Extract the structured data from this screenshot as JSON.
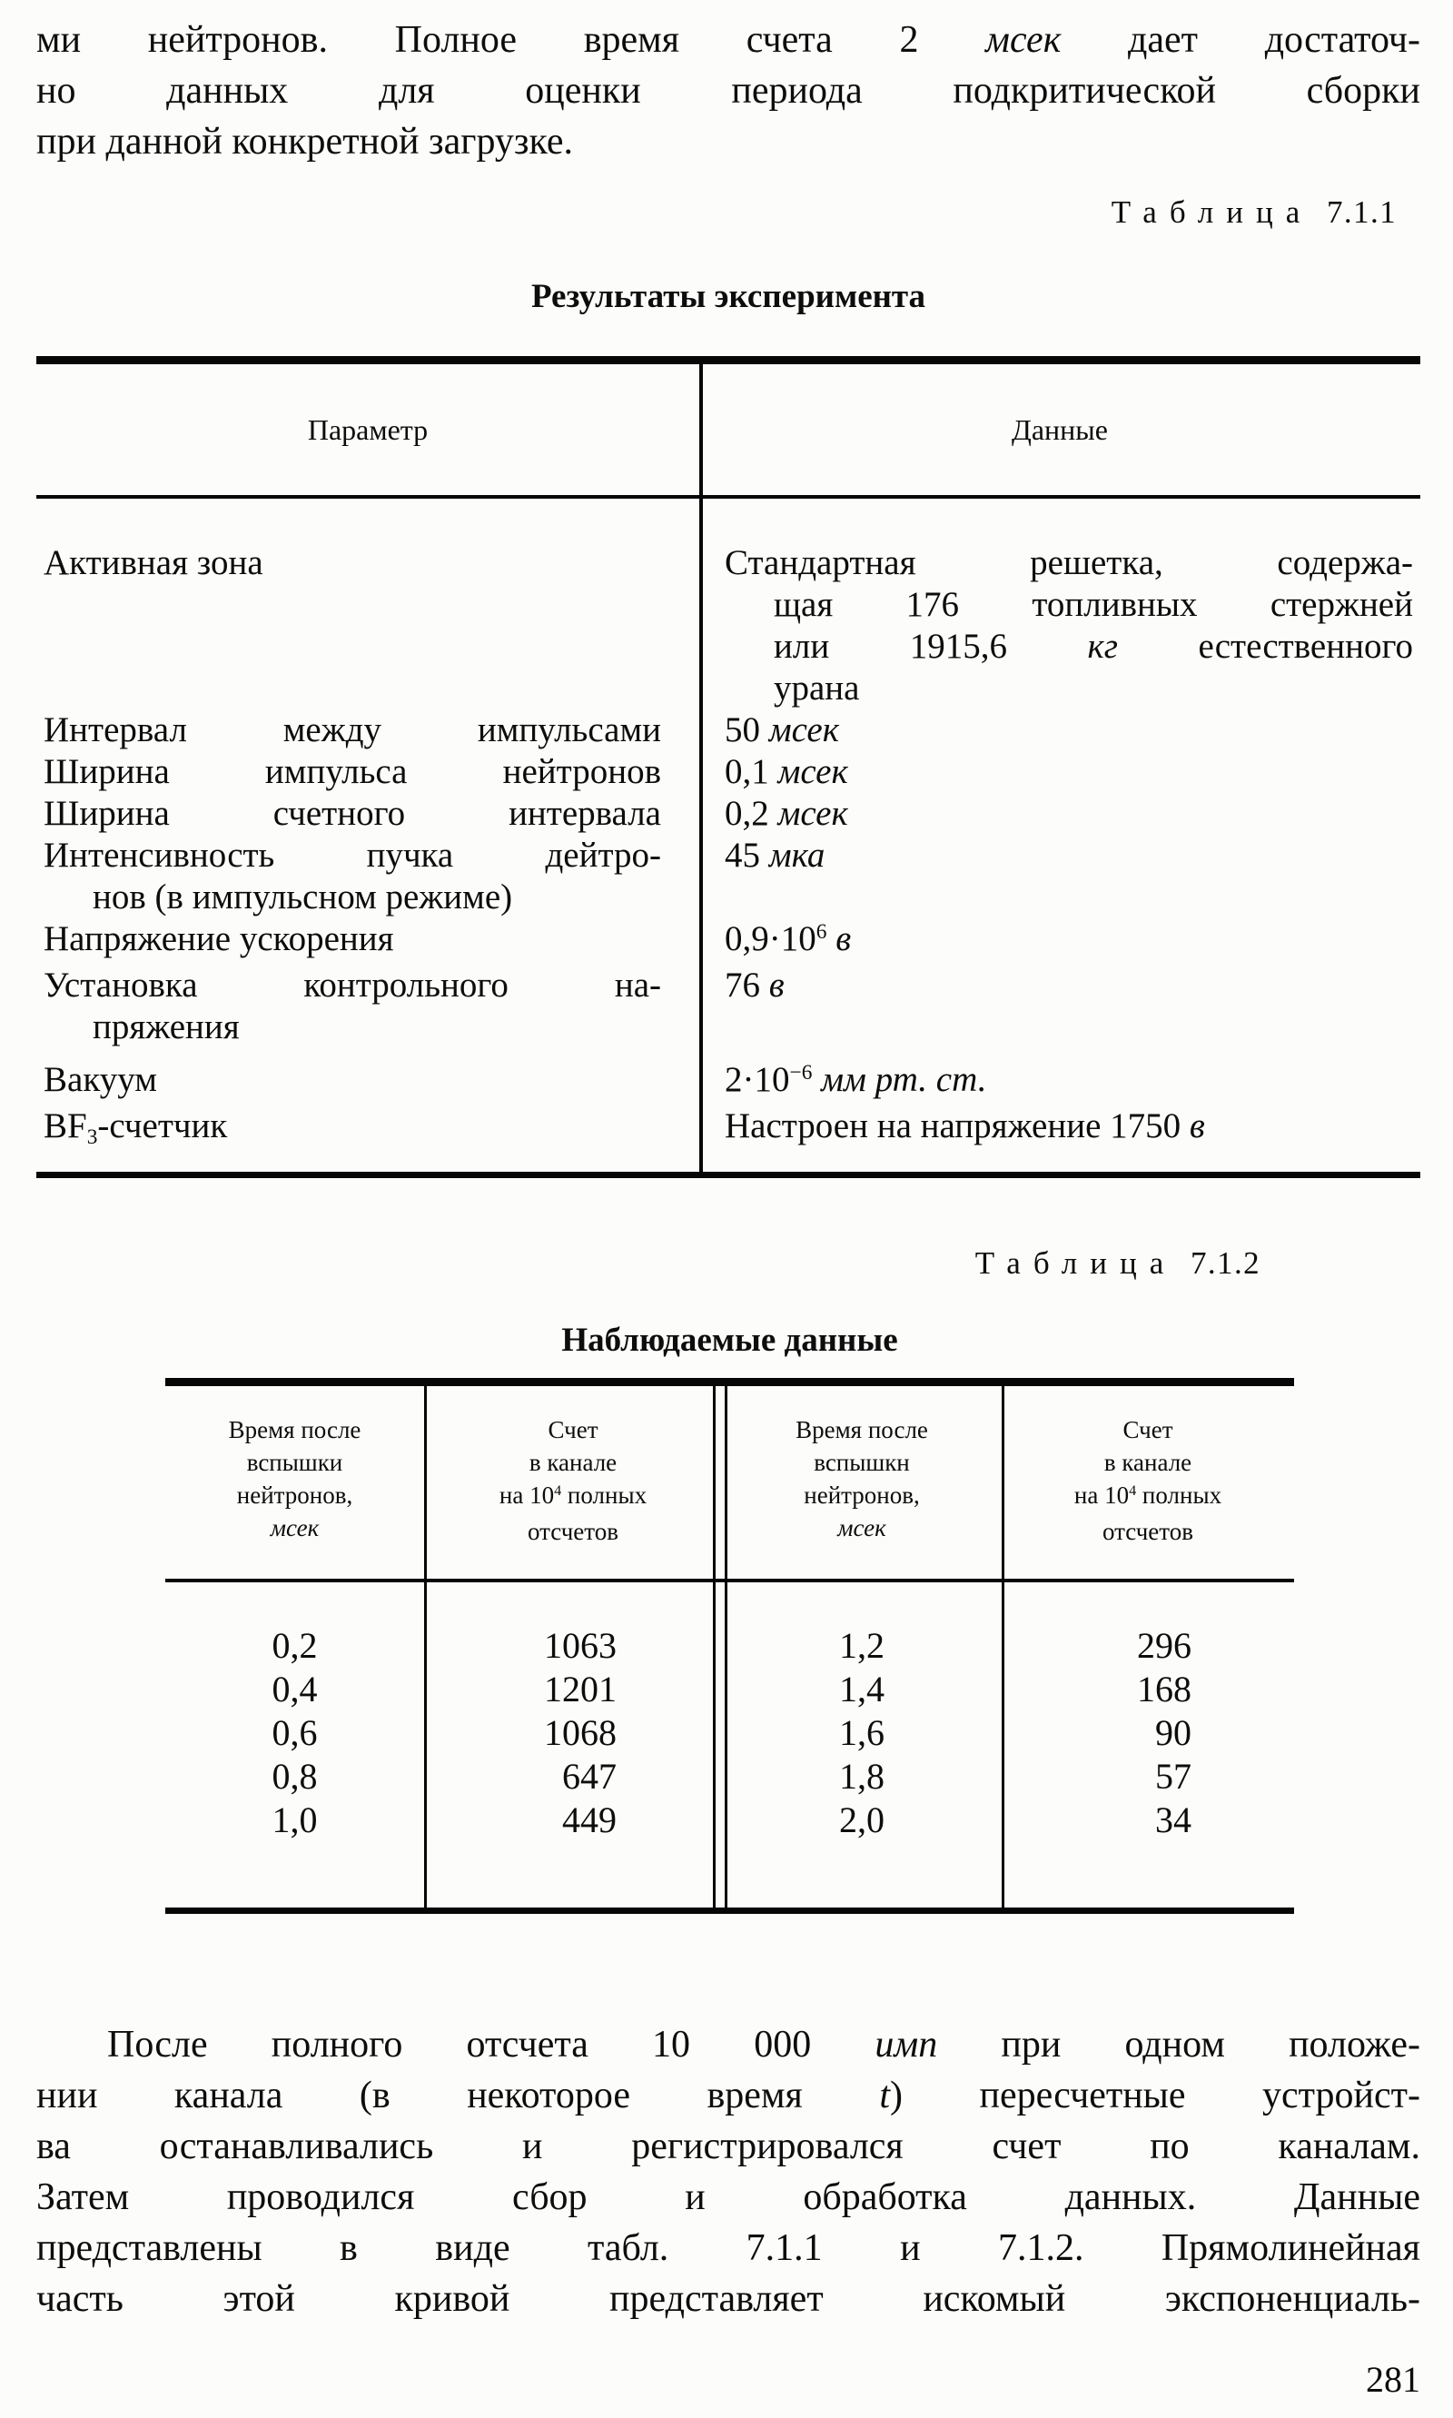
{
  "page_number": "281",
  "intro_paragraph": {
    "lines": [
      [
        {
          "t": "ми нейтронов. Полное время счета 2 "
        },
        {
          "t": "мсек",
          "i": true
        },
        {
          "t": " дает достаточ-"
        }
      ],
      [
        {
          "t": "но данных для оценки периода подкритической сборки"
        }
      ],
      [
        {
          "t": "при данной конкретной загрузке."
        }
      ]
    ]
  },
  "table1": {
    "caption_word": "Таблица",
    "caption_number": "7.1.1",
    "title": "Результаты эксперимента",
    "columns": [
      "Параметр",
      "Данные"
    ],
    "rows": [
      {
        "param": [
          [
            {
              "t": "Активная зона"
            }
          ]
        ],
        "value": [
          [
            {
              "t": "Стандартная решетка, содержа-"
            }
          ],
          [
            {
              "t": "щая 176 топливных стержней"
            }
          ],
          [
            {
              "t": "или 1915,6 "
            },
            {
              "t": "кг",
              "i": true
            },
            {
              "t": " естественного"
            }
          ],
          [
            {
              "t": "урана"
            }
          ]
        ]
      },
      {
        "param": [
          [
            {
              "t": "Интервал между импульсами"
            }
          ]
        ],
        "value": [
          [
            {
              "t": "50 "
            },
            {
              "t": "мсек",
              "i": true
            }
          ]
        ]
      },
      {
        "param": [
          [
            {
              "t": "Ширина импульса нейтронов"
            }
          ]
        ],
        "value": [
          [
            {
              "t": "0,1 "
            },
            {
              "t": "мсек",
              "i": true
            }
          ]
        ]
      },
      {
        "param": [
          [
            {
              "t": "Ширина счетного интервала"
            }
          ]
        ],
        "value": [
          [
            {
              "t": "0,2 "
            },
            {
              "t": "мсек",
              "i": true
            }
          ]
        ]
      },
      {
        "param": [
          [
            {
              "t": "Интенсивность пучка дейтро-"
            }
          ],
          [
            {
              "t": "нов (в импульсном режиме)"
            }
          ]
        ],
        "value": [
          [
            {
              "t": "45 "
            },
            {
              "t": "мка",
              "i": true
            }
          ]
        ]
      },
      {
        "param": [
          [
            {
              "t": "Напряжение ускорения"
            }
          ]
        ],
        "value": [
          [
            {
              "t": "0,9·10"
            },
            {
              "t": "6",
              "sup": true
            },
            {
              "t": " "
            },
            {
              "t": "в",
              "i": true
            }
          ]
        ]
      },
      {
        "param": [
          [
            {
              "t": "Установка контрольного на-"
            }
          ],
          [
            {
              "t": "пряжения"
            }
          ]
        ],
        "value": [
          [
            {
              "t": "76 "
            },
            {
              "t": "в",
              "i": true
            }
          ]
        ]
      },
      {
        "param": [
          [
            {
              "t": "Вакуум"
            }
          ]
        ],
        "value": [
          [
            {
              "t": "2·10"
            },
            {
              "t": "−6",
              "sup": true
            },
            {
              "t": " "
            },
            {
              "t": "мм рт. ст.",
              "i": true
            }
          ]
        ]
      },
      {
        "param": [
          [
            {
              "t": "BF"
            },
            {
              "t": "3",
              "sub": true
            },
            {
              "t": "-счетчик"
            }
          ]
        ],
        "value": [
          [
            {
              "t": "Настроен на напряжение 1750 "
            },
            {
              "t": "в",
              "i": true
            }
          ]
        ]
      }
    ]
  },
  "table2": {
    "caption_word": "Таблица",
    "caption_number": "7.1.2",
    "title": "Наблюдаемые данные",
    "headers": [
      {
        "lines": [
          [
            {
              "t": "Время после"
            }
          ],
          [
            {
              "t": "вспышки"
            }
          ],
          [
            {
              "t": "нейтронов,"
            }
          ],
          [
            {
              "t": "мсек",
              "i": true
            }
          ]
        ]
      },
      {
        "lines": [
          [
            {
              "t": "Счет"
            }
          ],
          [
            {
              "t": "в канале"
            }
          ],
          [
            {
              "t": "на 10"
            },
            {
              "t": "4",
              "sup": true
            },
            {
              "t": " полных"
            }
          ],
          [
            {
              "t": "отсчетов"
            }
          ]
        ]
      },
      {
        "lines": [
          [
            {
              "t": "Время после"
            }
          ],
          [
            {
              "t": "вспышкн"
            }
          ],
          [
            {
              "t": "нейтронов,"
            }
          ],
          [
            {
              "t": "мсек",
              "i": true
            }
          ]
        ]
      },
      {
        "lines": [
          [
            {
              "t": "Счет"
            }
          ],
          [
            {
              "t": "в канале"
            }
          ],
          [
            {
              "t": "на 10"
            },
            {
              "t": "4",
              "sup": true
            },
            {
              "t": " полных"
            }
          ],
          [
            {
              "t": "отсчетов"
            }
          ]
        ]
      }
    ],
    "rows": [
      [
        "0,2",
        "1063",
        "1,2",
        "296"
      ],
      [
        "0,4",
        "1201",
        "1,4",
        "168"
      ],
      [
        "0,6",
        "1068",
        "1,6",
        "90"
      ],
      [
        "0,8",
        "647",
        "1,8",
        "57"
      ],
      [
        "1,0",
        "449",
        "2,0",
        "34"
      ]
    ]
  },
  "closing_paragraph": {
    "lines": [
      [
        {
          "t": "После полного отсчета 10 000 "
        },
        {
          "t": "имп",
          "i": true
        },
        {
          "t": " при одном положе-"
        }
      ],
      [
        {
          "t": "нии канала (в некоторое время "
        },
        {
          "t": "t",
          "i": true
        },
        {
          "t": ") пересчетные устройст-"
        }
      ],
      [
        {
          "t": "ва останавливались и регистрировался счет по каналам."
        }
      ],
      [
        {
          "t": "Затем проводился сбор и обработка данных. Данные"
        }
      ],
      [
        {
          "t": "представлены в виде табл. 7.1.1 и 7.1.2. Прямолинейная"
        }
      ],
      [
        {
          "t": "часть этой кривой представляет искомый экспоненциаль-"
        }
      ]
    ]
  }
}
